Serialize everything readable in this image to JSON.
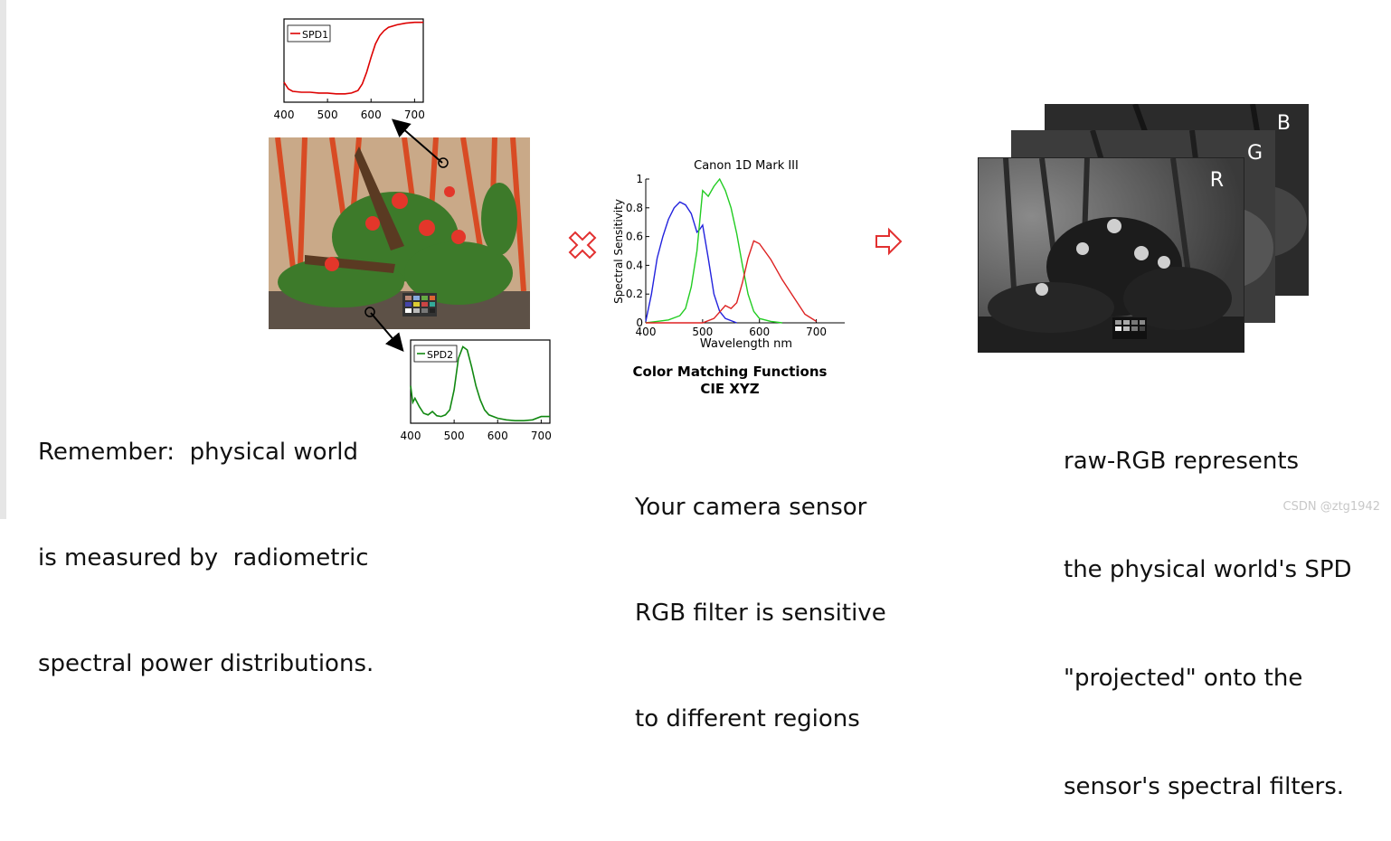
{
  "left": {
    "caption_lines": [
      "Remember:  physical world",
      "is measured by  radiometric",
      "spectral power distributions."
    ],
    "spd1": {
      "legend": "SPD1",
      "color": "#dd0000"
    },
    "spd2": {
      "legend": "SPD2",
      "color": "#118811"
    }
  },
  "middle": {
    "cross_icon": "red-x-outline-icon",
    "cmf_title_line1": "Color Matching Functions",
    "cmf_title_line2": "CIE XYZ",
    "caption_lines": [
      "Your camera sensor",
      "RGB filter is sensitive",
      "to different regions"
    ]
  },
  "arrow_icon": "red-outline-right-arrow-icon",
  "right": {
    "layers": [
      "B",
      "G",
      "R"
    ],
    "caption_lines": [
      "raw-RGB represents",
      "the physical world's SPD",
      "\"projected\" onto the",
      "sensor's spectral filters."
    ]
  },
  "watermark": "CSDN @ztg1942",
  "chart_data": [
    {
      "type": "line",
      "legend": [
        "SPD1"
      ],
      "xlim": [
        400,
        720
      ],
      "x_ticks": [
        "400",
        "500",
        "600",
        "700"
      ],
      "grid": false,
      "legend_position": "top-left",
      "series": [
        {
          "name": "SPD1",
          "color": "#dd0000",
          "x": [
            400,
            410,
            420,
            440,
            460,
            480,
            500,
            520,
            540,
            555,
            570,
            580,
            590,
            600,
            610,
            620,
            630,
            640,
            660,
            680,
            700,
            720
          ],
          "y": [
            0.24,
            0.16,
            0.13,
            0.12,
            0.12,
            0.11,
            0.11,
            0.1,
            0.1,
            0.11,
            0.14,
            0.22,
            0.36,
            0.54,
            0.7,
            0.8,
            0.86,
            0.9,
            0.93,
            0.95,
            0.96,
            0.96
          ]
        }
      ]
    },
    {
      "type": "line",
      "legend": [
        "SPD2"
      ],
      "xlim": [
        400,
        720
      ],
      "x_ticks": [
        "400",
        "500",
        "600",
        "700"
      ],
      "grid": false,
      "legend_position": "top-left",
      "series": [
        {
          "name": "SPD2",
          "color": "#118811",
          "x": [
            400,
            405,
            410,
            420,
            430,
            440,
            450,
            460,
            470,
            480,
            490,
            500,
            510,
            520,
            530,
            540,
            550,
            560,
            570,
            580,
            600,
            620,
            640,
            660,
            680,
            700,
            720
          ],
          "y": [
            0.45,
            0.25,
            0.3,
            0.2,
            0.12,
            0.1,
            0.14,
            0.09,
            0.08,
            0.1,
            0.16,
            0.4,
            0.78,
            0.92,
            0.88,
            0.68,
            0.45,
            0.28,
            0.16,
            0.1,
            0.06,
            0.04,
            0.03,
            0.03,
            0.04,
            0.08,
            0.08
          ]
        }
      ]
    },
    {
      "type": "line",
      "title": "Canon 1D Mark III",
      "xlabel": "Wavelength nm",
      "ylabel": "Spectral Sensitivity",
      "xlim": [
        400,
        750
      ],
      "ylim": [
        0,
        1
      ],
      "x_ticks": [
        "400",
        "500",
        "600",
        "700"
      ],
      "y_ticks": [
        "0",
        "0.2",
        "0.4",
        "0.6",
        "0.8",
        "1"
      ],
      "grid": false,
      "series": [
        {
          "color": "#2222dd",
          "x": [
            400,
            410,
            420,
            430,
            440,
            450,
            460,
            470,
            480,
            490,
            495,
            500,
            510,
            520,
            530,
            540,
            560
          ],
          "y": [
            0.01,
            0.2,
            0.45,
            0.6,
            0.72,
            0.8,
            0.84,
            0.82,
            0.76,
            0.63,
            0.65,
            0.68,
            0.45,
            0.2,
            0.08,
            0.03,
            0.0
          ]
        },
        {
          "color": "#22cc22",
          "x": [
            400,
            420,
            440,
            460,
            470,
            480,
            490,
            500,
            510,
            520,
            530,
            540,
            550,
            560,
            570,
            580,
            590,
            600,
            620,
            640
          ],
          "y": [
            0.0,
            0.01,
            0.02,
            0.05,
            0.1,
            0.25,
            0.5,
            0.92,
            0.88,
            0.95,
            1.0,
            0.92,
            0.8,
            0.62,
            0.4,
            0.2,
            0.08,
            0.03,
            0.01,
            0.0
          ]
        },
        {
          "color": "#dd2222",
          "x": [
            400,
            500,
            520,
            540,
            550,
            560,
            570,
            580,
            590,
            600,
            620,
            640,
            660,
            680,
            700
          ],
          "y": [
            0.0,
            0.0,
            0.03,
            0.12,
            0.1,
            0.14,
            0.28,
            0.45,
            0.57,
            0.55,
            0.44,
            0.3,
            0.18,
            0.06,
            0.01
          ]
        }
      ]
    }
  ]
}
